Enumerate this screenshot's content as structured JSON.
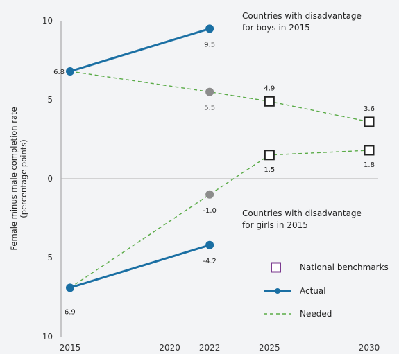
{
  "chart_data": {
    "type": "line",
    "xlabel": "",
    "ylabel": [
      "Female minus male completion rate",
      "(percentage points)"
    ],
    "xlim": [
      2015,
      2030
    ],
    "ylim": [
      -10,
      10
    ],
    "x_ticks": [
      2015,
      2020,
      2022,
      2025,
      2030
    ],
    "y_ticks": [
      10,
      5,
      0,
      -5,
      -10
    ],
    "y_tick_labels": [
      "10",
      "5",
      "0",
      "-5",
      "-10"
    ],
    "grid": false,
    "colors": {
      "actual": "#1a6fa3",
      "needed": "#5aab47",
      "projected_point": "#8c8c8c",
      "benchmark": "#222222",
      "zero_line": "#b0b0b0",
      "legend_benchmark": "#7b3a8f"
    },
    "groups": [
      {
        "annotation": [
          "Countries with disadvantage",
          "for boys in 2015"
        ],
        "actual": [
          {
            "x": 2015,
            "y": 6.8,
            "label": "6.8"
          },
          {
            "x": 2022,
            "y": 9.5,
            "label": "9.5"
          }
        ],
        "needed": [
          {
            "x": 2015,
            "y": 6.8
          },
          {
            "x": 2022,
            "y": 5.5
          },
          {
            "x": 2025,
            "y": 4.9
          },
          {
            "x": 2030,
            "y": 3.6
          }
        ],
        "needed_point": {
          "x": 2022,
          "y": 5.5,
          "label": "5.5"
        },
        "benchmarks": [
          {
            "x": 2025,
            "y": 4.9,
            "label": "4.9"
          },
          {
            "x": 2030,
            "y": 3.6,
            "label": "3.6"
          }
        ]
      },
      {
        "annotation": [
          "Countries with disadvantage",
          "for girls in 2015"
        ],
        "actual": [
          {
            "x": 2015,
            "y": -6.9,
            "label": "-6.9"
          },
          {
            "x": 2022,
            "y": -4.2,
            "label": "-4.2"
          }
        ],
        "needed": [
          {
            "x": 2015,
            "y": -6.9
          },
          {
            "x": 2022,
            "y": -1.0
          },
          {
            "x": 2025,
            "y": 1.5
          },
          {
            "x": 2030,
            "y": 1.8
          }
        ],
        "needed_point": {
          "x": 2022,
          "y": -1.0,
          "label": "-1.0"
        },
        "benchmarks": [
          {
            "x": 2025,
            "y": 1.5,
            "label": "1.5"
          },
          {
            "x": 2030,
            "y": 1.8,
            "label": "1.8"
          }
        ]
      }
    ],
    "legend": {
      "position": "bottom-right",
      "items": [
        {
          "key": "benchmark",
          "label": "National benchmarks"
        },
        {
          "key": "actual",
          "label": "Actual"
        },
        {
          "key": "needed",
          "label": "Needed"
        }
      ]
    }
  }
}
